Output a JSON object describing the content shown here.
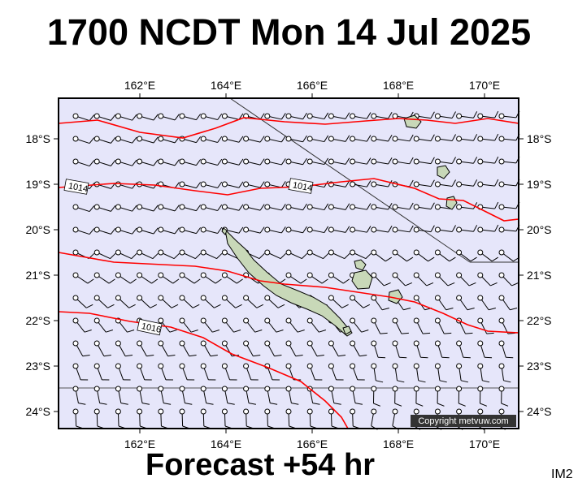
{
  "title": "1700 NCDT Mon 14 Jul 2025",
  "footer": "Forecast +54 hr",
  "image_code": "IM2",
  "copyright": "Copyright metvuw.com",
  "lon_labels": [
    "162°E",
    "164°E",
    "166°E",
    "168°E",
    "170°E"
  ],
  "lat_labels": [
    "18°S",
    "19°S",
    "20°S",
    "21°S",
    "22°S",
    "23°S",
    "24°S"
  ],
  "isobar_labels": [
    "1014",
    "1014",
    "1016"
  ],
  "colors": {
    "ocean": "#e6e6fa",
    "isobar": "#ff0000",
    "land": "#c8d8b8",
    "wind_barb": "#000000"
  }
}
